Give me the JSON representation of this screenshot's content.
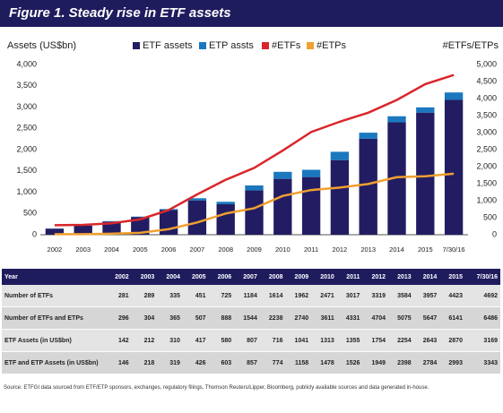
{
  "header": {
    "title": "Figure 1. Steady rise in ETF assets"
  },
  "chart_data": {
    "type": "bar",
    "ylabel": "Assets (US$bn)",
    "y2label": "#ETFs/ETPs",
    "categories": [
      "2002",
      "2003",
      "2004",
      "2005",
      "2006",
      "2007",
      "2008",
      "2009",
      "2010",
      "2011",
      "2012",
      "2013",
      "2014",
      "2015",
      "7/30/16"
    ],
    "series": [
      {
        "name": "ETF assets",
        "color": "#221d63",
        "values": [
          142,
          212,
          310,
          417,
          580,
          807,
          716,
          1041,
          1313,
          1355,
          1754,
          2254,
          2643,
          2870,
          3169
        ]
      },
      {
        "name": "ETP assts",
        "color": "#1b78be",
        "values": [
          4,
          6,
          9,
          9,
          23,
          50,
          58,
          117,
          165,
          171,
          195,
          144,
          141,
          123,
          174
        ]
      },
      {
        "name": "#ETFs",
        "type": "line",
        "axis": "y2",
        "color": "#d9262b",
        "values": [
          281,
          289,
          335,
          451,
          725,
          1184,
          1614,
          1962,
          2471,
          3017,
          3319,
          3584,
          3957,
          4423,
          4692
        ]
      },
      {
        "name": "#ETPs",
        "type": "line",
        "axis": "y2",
        "color": "#f0a030",
        "values": [
          15,
          15,
          30,
          56,
          163,
          360,
          624,
          778,
          1140,
          1314,
          1385,
          1491,
          1690,
          1718,
          1794
        ]
      }
    ],
    "ylim": [
      0,
      4000
    ],
    "yticks": [
      0,
      500,
      {
        "value": 1000,
        "label": "1,000"
      },
      {
        "value": 1500,
        "label": "1,500"
      },
      {
        "value": 2000,
        "label": "2,000"
      },
      {
        "value": 2500,
        "label": "2,500"
      },
      {
        "value": 3000,
        "label": "3,000"
      },
      {
        "value": 3500,
        "label": "3,500"
      },
      {
        "value": 4000,
        "label": "4,000"
      }
    ],
    "y2lim": [
      0,
      5000
    ],
    "y2ticks": [
      0,
      500,
      {
        "value": 1000,
        "label": "1,000"
      },
      {
        "value": 1500,
        "label": "1,500"
      },
      {
        "value": 2000,
        "label": "2,000"
      },
      {
        "value": 2500,
        "label": "2,500"
      },
      {
        "value": 3000,
        "label": "3,000"
      },
      {
        "value": 3500,
        "label": "3,500"
      },
      {
        "value": 4000,
        "label": "4,000"
      },
      {
        "value": 4500,
        "label": "4,500"
      },
      {
        "value": 5000,
        "label": "5,000"
      }
    ]
  },
  "table": {
    "header": [
      "Year",
      "2002",
      "2003",
      "2004",
      "2005",
      "2006",
      "2007",
      "2008",
      "2009",
      "2010",
      "2011",
      "2012",
      "2013",
      "2014",
      "2015",
      "7/30/16"
    ],
    "rows": [
      [
        "Number of ETFs",
        281,
        289,
        335,
        451,
        725,
        1184,
        1614,
        1962,
        2471,
        3017,
        3319,
        3584,
        3957,
        4423,
        4692
      ],
      [
        "Number of ETFs and ETPs",
        296,
        304,
        365,
        507,
        888,
        1544,
        2238,
        2740,
        3611,
        4331,
        4704,
        5075,
        5647,
        6141,
        6486
      ],
      [
        "ETF Assets (in US$bn)",
        142,
        212,
        310,
        417,
        580,
        807,
        716,
        1041,
        1313,
        1355,
        1754,
        2254,
        2643,
        2870,
        3169
      ],
      [
        "ETF and ETP Assets (in US$bn)",
        146,
        218,
        319,
        426,
        603,
        857,
        774,
        1158,
        1478,
        1526,
        1949,
        2398,
        2784,
        2993,
        3343
      ]
    ]
  },
  "source": "Source: ETFGI data sourced from ETF/ETP sponsors, exchanges, regulatory filings, Thomson Reuters/Lipper, Bloomberg, publicly available sources and data generated in-house."
}
